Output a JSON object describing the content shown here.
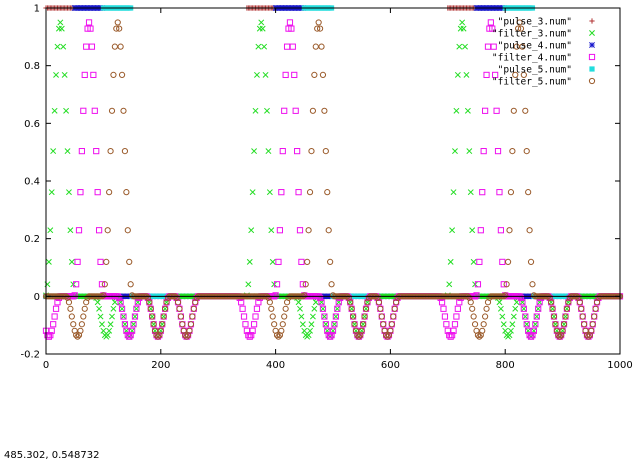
{
  "status_readout": "485.302,  0.548732",
  "chart_data": {
    "type": "scatter",
    "title": "",
    "xlabel": "",
    "ylabel": "",
    "xlim": [
      0,
      1000
    ],
    "ylim": [
      -0.2,
      1
    ],
    "grid": false,
    "legend_position": "top-right",
    "xticks": [
      0,
      200,
      400,
      600,
      800,
      1000
    ],
    "yticks": [
      -0.2,
      0,
      0.2,
      0.4,
      0.6,
      0.8,
      1
    ],
    "xtick_labels": [
      "0",
      "200",
      "400",
      "600",
      "800",
      "1000"
    ],
    "ytick_labels": [
      "-0.2",
      "0",
      "0.2",
      "0.4",
      "0.6",
      "0.8",
      "1"
    ],
    "series": [
      {
        "name": "\"pulse_3.num\"",
        "marker": "plus",
        "color": "#b03030",
        "pulse": {
          "value": 1,
          "baseline": 0,
          "period": 350,
          "start": 0,
          "width": 50,
          "x_end": 1000
        }
      },
      {
        "name": "\"filter_3.num\"",
        "marker": "x",
        "color": "#22dd22",
        "filter": {
          "peak": 0.95,
          "trough": -0.14,
          "peak_x": [
            25,
            375,
            725
          ],
          "trough_x": [
            105,
            145,
            195,
            455,
            495,
            545,
            805,
            845,
            895
          ]
        }
      },
      {
        "name": "\"pulse_4.num\"",
        "marker": "star",
        "color": "#1a1acc",
        "pulse": {
          "value": 1,
          "baseline": 0,
          "period": 350,
          "start": 50,
          "width": 50,
          "x_end": 1000
        }
      },
      {
        "name": "\"filter_4.num\"",
        "marker": "square",
        "color": "#ee11ee",
        "filter": {
          "peak": 0.95,
          "trough": -0.14,
          "peak_x": [
            75,
            425,
            775
          ],
          "trough_x": [
            5,
            145,
            195,
            245,
            355,
            495,
            545,
            595,
            705,
            845,
            895,
            945
          ]
        }
      },
      {
        "name": "\"pulse_5.num\"",
        "marker": "filled-square",
        "color": "#22dddd",
        "pulse": {
          "value": 1,
          "baseline": 0,
          "period": 350,
          "start": 100,
          "width": 50,
          "x_end": 1000
        }
      },
      {
        "name": "\"filter_5.num\"",
        "marker": "circle",
        "color": "#9a5a2a",
        "filter": {
          "peak": 0.95,
          "trough": -0.14,
          "peak_x": [
            125,
            475,
            825
          ],
          "trough_x": [
            55,
            195,
            245,
            405,
            545,
            595,
            755,
            895,
            945
          ]
        }
      }
    ]
  }
}
